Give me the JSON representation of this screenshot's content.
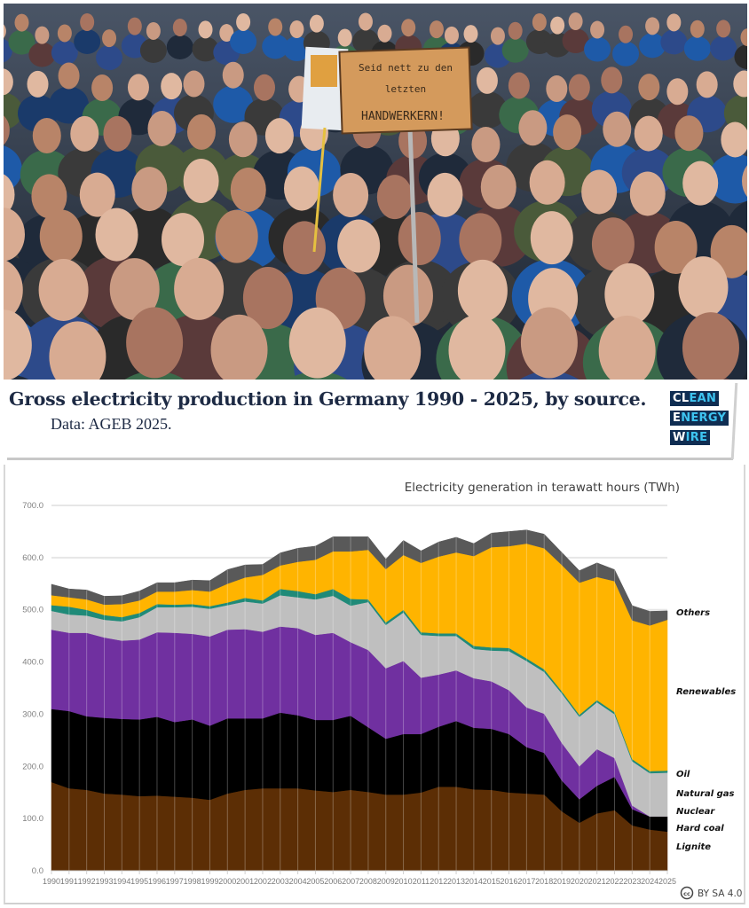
{
  "photo": {
    "description": "Crowd of protesters",
    "sign_lines": [
      "Seid nett zu den",
      "letzten",
      "HANDWERKERN!"
    ]
  },
  "header": {
    "title": "Gross electricity production in Germany 1990 - 2025, by source.",
    "subtitle": "Data: AGEB 2025.",
    "logo": [
      {
        "white": "CL",
        "rest": "EAN"
      },
      {
        "white": "E",
        "rest": "NERGY"
      },
      {
        "white": "W",
        "rest": "IRE"
      }
    ]
  },
  "license": "BY SA 4.0",
  "colors": {
    "Lignite": "#5c2e05",
    "Hard coal": "#000000",
    "Nuclear": "#7030a0",
    "Natural gas": "#bfbfbf",
    "Oil": "#1f8a78",
    "Renewables": "#ffb400",
    "Others": "#595959"
  },
  "chart_data": {
    "type": "area",
    "stacked": true,
    "title": "Electricity generation in terawatt hours (TWh)",
    "xlabel": "",
    "ylabel": "TWh",
    "ylim": [
      0,
      700
    ],
    "yticks": [
      "0.0",
      "100.0",
      "200.0",
      "300.0",
      "400.0",
      "500.0",
      "600.0",
      "700.0"
    ],
    "grid": "horizontal",
    "legend": "right, inline labels",
    "x": [
      1990,
      1991,
      1992,
      1993,
      1994,
      1995,
      1996,
      1997,
      1998,
      1999,
      2000,
      2001,
      2002,
      2003,
      2004,
      2005,
      2006,
      2007,
      2008,
      2009,
      2010,
      2011,
      2012,
      2013,
      2014,
      2015,
      2016,
      2017,
      2018,
      2019,
      2020,
      2021,
      2022,
      2023,
      2024,
      2025
    ],
    "series": [
      {
        "name": "Lignite",
        "values": [
          170,
          158,
          155,
          148,
          146,
          143,
          144,
          142,
          140,
          136,
          148,
          155,
          158,
          158,
          158,
          154,
          151,
          155,
          151,
          146,
          146,
          150,
          161,
          161,
          156,
          155,
          150,
          148,
          146,
          114,
          92,
          110,
          116,
          87,
          79,
          75
        ]
      },
      {
        "name": "Hard coal",
        "values": [
          140,
          148,
          141,
          145,
          145,
          147,
          151,
          143,
          150,
          142,
          144,
          137,
          134,
          145,
          140,
          135,
          138,
          142,
          124,
          107,
          116,
          112,
          115,
          126,
          118,
          117,
          112,
          89,
          80,
          59,
          45,
          53,
          64,
          31,
          25,
          29
        ]
      },
      {
        "name": "Nuclear",
        "values": [
          152,
          150,
          160,
          154,
          150,
          153,
          162,
          171,
          164,
          171,
          170,
          171,
          166,
          165,
          167,
          163,
          167,
          141,
          148,
          135,
          140,
          108,
          100,
          97,
          95,
          91,
          84,
          76,
          75,
          72,
          63,
          70,
          36,
          7,
          0,
          0
        ]
      },
      {
        "name": "Natural gas",
        "values": [
          36,
          35,
          33,
          34,
          37,
          43,
          48,
          49,
          52,
          53,
          47,
          53,
          54,
          60,
          59,
          68,
          71,
          70,
          92,
          83,
          93,
          82,
          74,
          66,
          56,
          59,
          75,
          89,
          80,
          95,
          95,
          90,
          84,
          85,
          83,
          84
        ]
      },
      {
        "name": "Oil",
        "values": [
          11,
          15,
          11,
          9,
          8,
          8,
          6,
          5,
          5,
          5,
          5,
          7,
          6,
          12,
          12,
          10,
          13,
          13,
          5,
          5,
          5,
          5,
          5,
          5,
          6,
          6,
          6,
          5,
          5,
          4,
          4,
          4,
          4,
          4,
          4,
          4
        ]
      },
      {
        "name": "Renewables",
        "values": [
          19,
          18,
          20,
          20,
          25,
          24,
          24,
          25,
          27,
          28,
          36,
          39,
          49,
          45,
          56,
          66,
          72,
          91,
          95,
          102,
          105,
          133,
          147,
          155,
          172,
          192,
          195,
          220,
          232,
          242,
          253,
          236,
          251,
          266,
          279,
          289
        ]
      },
      {
        "name": "Others",
        "values": [
          21,
          16,
          18,
          16,
          16,
          18,
          17,
          17,
          19,
          21,
          27,
          24,
          20,
          24,
          26,
          26,
          28,
          28,
          25,
          19,
          28,
          23,
          28,
          29,
          24,
          27,
          28,
          26,
          27,
          24,
          23,
          27,
          22,
          28,
          27,
          17
        ]
      }
    ],
    "series_labels_order_top_to_bottom": [
      "Others",
      "Renewables",
      "Oil",
      "Natural gas",
      "Nuclear",
      "Hard coal",
      "Lignite"
    ]
  }
}
